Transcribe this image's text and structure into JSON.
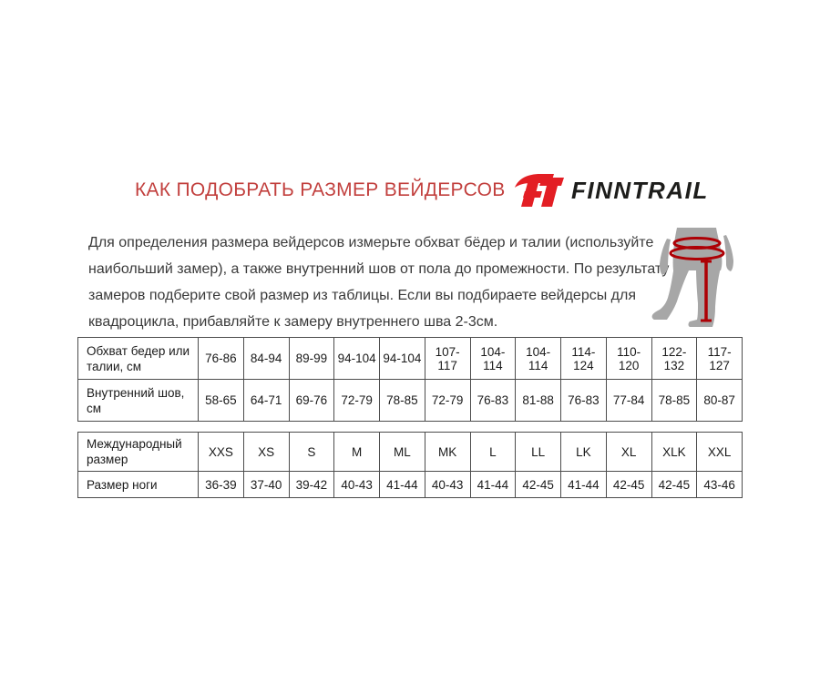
{
  "page": {
    "background_color": "#ffffff"
  },
  "header": {
    "title": "КАК ПОДОБРАТЬ РАЗМЕР ВЕЙДЕРСОВ",
    "title_color": "#c2403e",
    "logo": {
      "monogram": "FT",
      "brand": "FINNTRAIL",
      "monogram_color": "#e31e24",
      "brand_color": "#1d1d1b"
    }
  },
  "intro": {
    "lines": [
      "Для определения размера вейдерсов измерьте обхват бёдер и талии (используйте",
      "наибольший замер), а также внутренний шов от пола до промежности. По результату",
      "замеров подберите свой размер из таблицы. Если вы подбираете вейдерсы для",
      "квадроцикла, прибавляйте к замеру внутреннего шва 2-3см."
    ]
  },
  "figure": {
    "name": "wader-measurement-figure",
    "silhouette_color": "#a7a7a7",
    "measurement_color": "#ad0005"
  },
  "size_table": {
    "border_color": "#4c4c4c",
    "groups": [
      {
        "rows": [
          {
            "label": "Обхват бедер или талии, см",
            "values": [
              "76-86",
              "84-94",
              "89-99",
              "94-104",
              "94-104",
              "107-117",
              "104-114",
              "104-114",
              "114-124",
              "110-120",
              "122-132",
              "117-127"
            ]
          },
          {
            "label": "Внутренний шов, см",
            "values": [
              "58-65",
              "64-71",
              "69-76",
              "72-79",
              "78-85",
              "72-79",
              "76-83",
              "81-88",
              "76-83",
              "77-84",
              "78-85",
              "80-87"
            ]
          }
        ]
      },
      {
        "rows": [
          {
            "label": "Международный размер",
            "values": [
              "XXS",
              "XS",
              "S",
              "M",
              "ML",
              "MK",
              "L",
              "LL",
              "LK",
              "XL",
              "XLK",
              "XXL"
            ]
          },
          {
            "label": "Размер ноги",
            "values": [
              "36-39",
              "37-40",
              "39-42",
              "40-43",
              "41-44",
              "40-43",
              "41-44",
              "42-45",
              "41-44",
              "42-45",
              "42-45",
              "43-46"
            ]
          }
        ]
      }
    ]
  }
}
